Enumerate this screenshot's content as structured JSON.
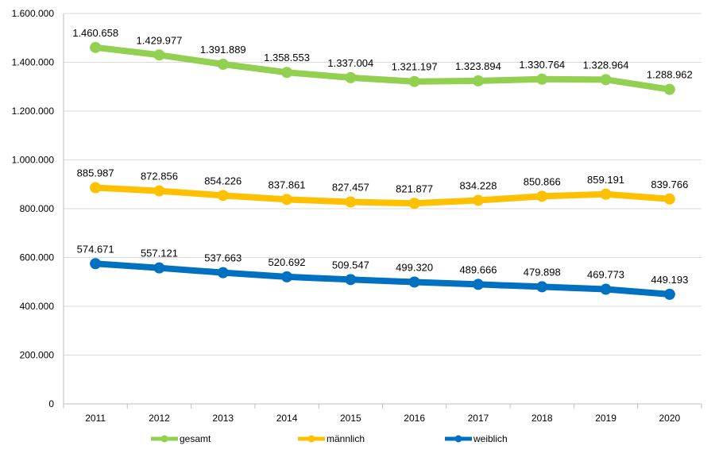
{
  "chart_data": {
    "type": "line",
    "title": "",
    "xlabel": "",
    "ylabel": "",
    "categories": [
      "2011",
      "2012",
      "2013",
      "2014",
      "2015",
      "2016",
      "2017",
      "2018",
      "2019",
      "2020"
    ],
    "ylim": [
      0,
      1600000
    ],
    "yticks": [
      0,
      200000,
      400000,
      600000,
      800000,
      1000000,
      1200000,
      1400000,
      1600000
    ],
    "ytick_labels": [
      "0",
      "200.000",
      "400.000",
      "600.000",
      "800.000",
      "1.000.000",
      "1.200.000",
      "1.400.000",
      "1.600.000"
    ],
    "grid": "horizontal",
    "legend_position": "bottom",
    "series": [
      {
        "name": "gesamt",
        "color": "#92D050",
        "values": [
          1460658,
          1429977,
          1391889,
          1358553,
          1337004,
          1321197,
          1323894,
          1330764,
          1328964,
          1288962
        ],
        "labels": [
          "1.460.658",
          "1.429.977",
          "1.391.889",
          "1.358.553",
          "1.337.004",
          "1.321.197",
          "1.323.894",
          "1.330.764",
          "1.328.964",
          "1.288.962"
        ]
      },
      {
        "name": "männlich",
        "color": "#FFC000",
        "values": [
          885987,
          872856,
          854226,
          837861,
          827457,
          821877,
          834228,
          850866,
          859191,
          839766
        ],
        "labels": [
          "885.987",
          "872.856",
          "854.226",
          "837.861",
          "827.457",
          "821.877",
          "834.228",
          "850.866",
          "859.191",
          "839.766"
        ]
      },
      {
        "name": "weiblich",
        "color": "#0070C0",
        "values": [
          574671,
          557121,
          537663,
          520692,
          509547,
          499320,
          489666,
          479898,
          469773,
          449193
        ],
        "labels": [
          "574.671",
          "557.121",
          "537.663",
          "520.692",
          "509.547",
          "499.320",
          "489.666",
          "479.898",
          "469.773",
          "449.193"
        ]
      }
    ]
  }
}
